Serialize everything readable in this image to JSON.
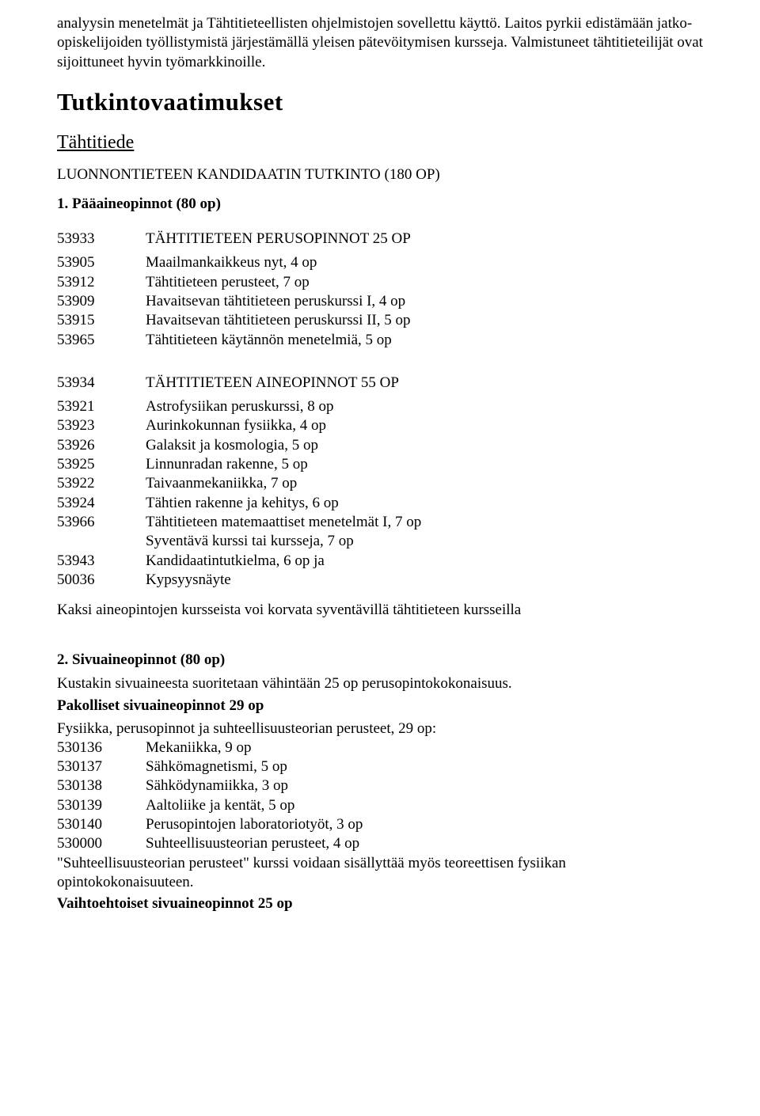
{
  "intro": {
    "p1": "analyysin menetelmät ja Tähtitieteellisten ohjelmistojen sovellettu käyttö. Laitos pyrkii edistämään jatko-opiskelijoiden työllistymistä järjestämällä yleisen pätevöitymisen kursseja. Valmistuneet tähtitieteilijät ovat sijoittuneet hyvin työmarkkinoille."
  },
  "headings": {
    "main": "Tutkintovaatimukset",
    "subject": "Tähtitiede",
    "degree": "LUONNONTIETEEN KANDIDAATIN TUTKINTO (180 OP)"
  },
  "major": {
    "title": "1. Pääaineopinnot (80 op)",
    "block1": {
      "head": {
        "code": "53933",
        "desc": "TÄHTITIETEEN PERUSOPINNOT 25 OP"
      },
      "rows": [
        {
          "code": "53905",
          "desc": "Maailmankaikkeus nyt, 4 op"
        },
        {
          "code": "53912",
          "desc": "Tähtitieteen perusteet, 7 op"
        },
        {
          "code": "53909",
          "desc": "Havaitsevan tähtitieteen peruskurssi I, 4 op"
        },
        {
          "code": "53915",
          "desc": "Havaitsevan tähtitieteen peruskurssi II, 5 op"
        },
        {
          "code": "53965",
          "desc": "Tähtitieteen käytännön menetelmiä, 5 op"
        }
      ]
    },
    "block2": {
      "head": {
        "code": "53934",
        "desc": "TÄHTITIETEEN AINEOPINNOT 55 OP"
      },
      "rows": [
        {
          "code": "53921",
          "desc": "Astrofysiikan peruskurssi, 8 op"
        },
        {
          "code": "53923",
          "desc": "Aurinkokunnan fysiikka, 4 op"
        },
        {
          "code": "53926",
          "desc": "Galaksit ja kosmologia, 5 op"
        },
        {
          "code": "53925",
          "desc": "Linnunradan rakenne, 5 op"
        },
        {
          "code": "53922",
          "desc": "Taivaanmekaniikka, 7 op"
        },
        {
          "code": "53924",
          "desc": "Tähtien rakenne ja kehitys, 6 op"
        },
        {
          "code": "53966",
          "desc": "Tähtitieteen matemaattiset menetelmät I, 7 op"
        },
        {
          "code": "",
          "desc": "Syventävä kurssi tai kursseja, 7 op"
        },
        {
          "code": "53943",
          "desc": "Kandidaatintutkielma, 6 op ja"
        },
        {
          "code": "50036",
          "desc": "Kypsyysnäyte"
        }
      ]
    },
    "note": "Kaksi aineopintojen kursseista voi korvata syventävillä tähtitieteen kursseilla"
  },
  "minor": {
    "title": "2. Sivuaineopinnot (80 op)",
    "intro": "Kustakin sivuaineesta suoritetaan vähintään 25 op perusopintokokonaisuus.",
    "mand_title": "Pakolliset sivuaineopinnot 29 op",
    "mand_intro": "Fysiikka, perusopinnot ja suhteellisuusteorian perusteet, 29 op:",
    "mand_rows": [
      {
        "code": "530136",
        "desc": "Mekaniikka, 9 op"
      },
      {
        "code": "530137",
        "desc": "Sähkömagnetismi, 5 op"
      },
      {
        "code": "530138",
        "desc": "Sähködynamiikka, 3 op"
      },
      {
        "code": "530139",
        "desc": "Aaltoliike ja kentät, 5 op"
      },
      {
        "code": "530140",
        "desc": "Perusopintojen laboratoriotyöt, 3 op"
      },
      {
        "code": "530000",
        "desc": "Suhteellisuusteorian perusteet, 4 op"
      }
    ],
    "mand_note": "\"Suhteellisuusteorian perusteet\" kurssi voidaan sisällyttää myös teoreettisen fysiikan opintokokonaisuuteen.",
    "opt_title": "Vaihtoehtoiset sivuaineopinnot 25 op"
  }
}
